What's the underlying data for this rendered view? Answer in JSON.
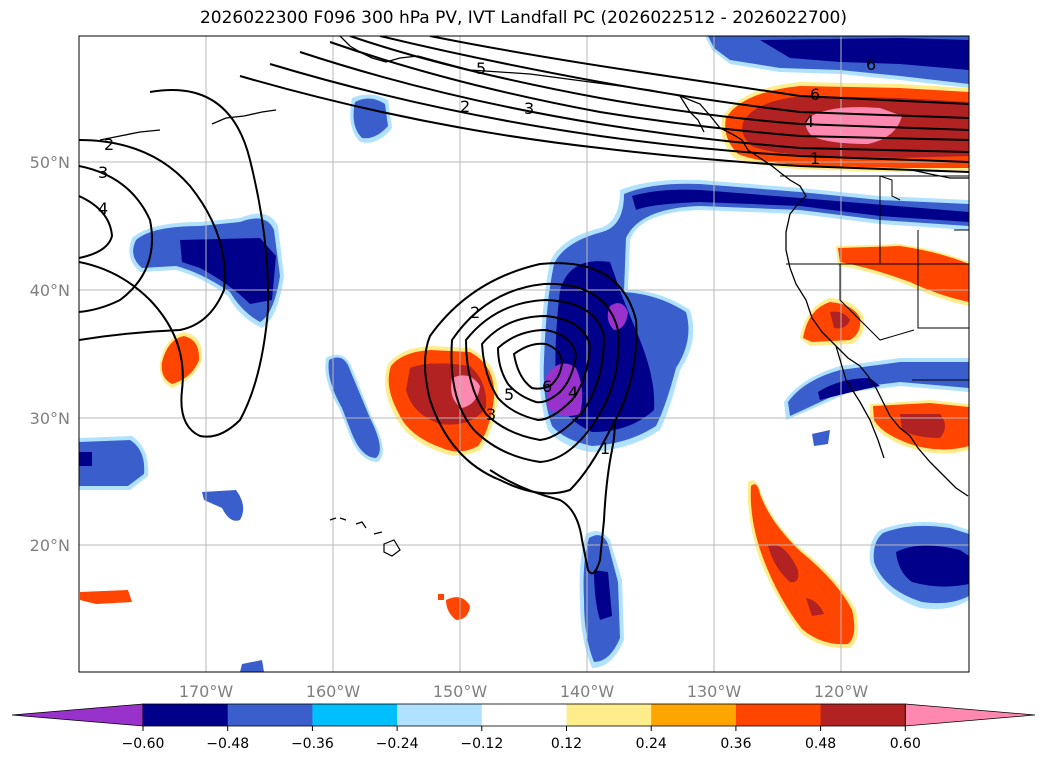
{
  "title": "2026022300 F096 300 hPa PV, IVT Landfall PC (2026022512 - 2026022700)",
  "lon_labels": [
    "170°W",
    "160°W",
    "150°W",
    "140°W",
    "130°W",
    "120°W"
  ],
  "lat_labels": [
    "50°N",
    "40°N",
    "30°N",
    "20°N"
  ],
  "colorbar": {
    "ticks": [
      "−0.60",
      "−0.48",
      "−0.36",
      "−0.24",
      "−0.12",
      "0.12",
      "0.24",
      "0.36",
      "0.48",
      "0.60"
    ],
    "colors": [
      "#9932cc",
      "#00008b",
      "#3a5fcd",
      "#00bfff",
      "#b0e2ff",
      "#ffffff",
      "#ffec8b",
      "#ffa500",
      "#ff4500",
      "#b22222",
      "#ff88b0"
    ]
  },
  "pv_contour_labels": [
    "5",
    "2",
    "3",
    "6",
    "6",
    "4",
    "1",
    "2",
    "3",
    "4",
    "2",
    "3",
    "5",
    "6",
    "4",
    "1"
  ],
  "palette": {
    "purple": "#9932cc",
    "navy": "#00008b",
    "blue": "#3a5fcd",
    "cyan": "#00bfff",
    "lightblue": "#b0e2ff",
    "yellow": "#ffec8b",
    "orange": "#ffa500",
    "redorange": "#ff4500",
    "darkred": "#b22222",
    "pink": "#ff88b0"
  }
}
